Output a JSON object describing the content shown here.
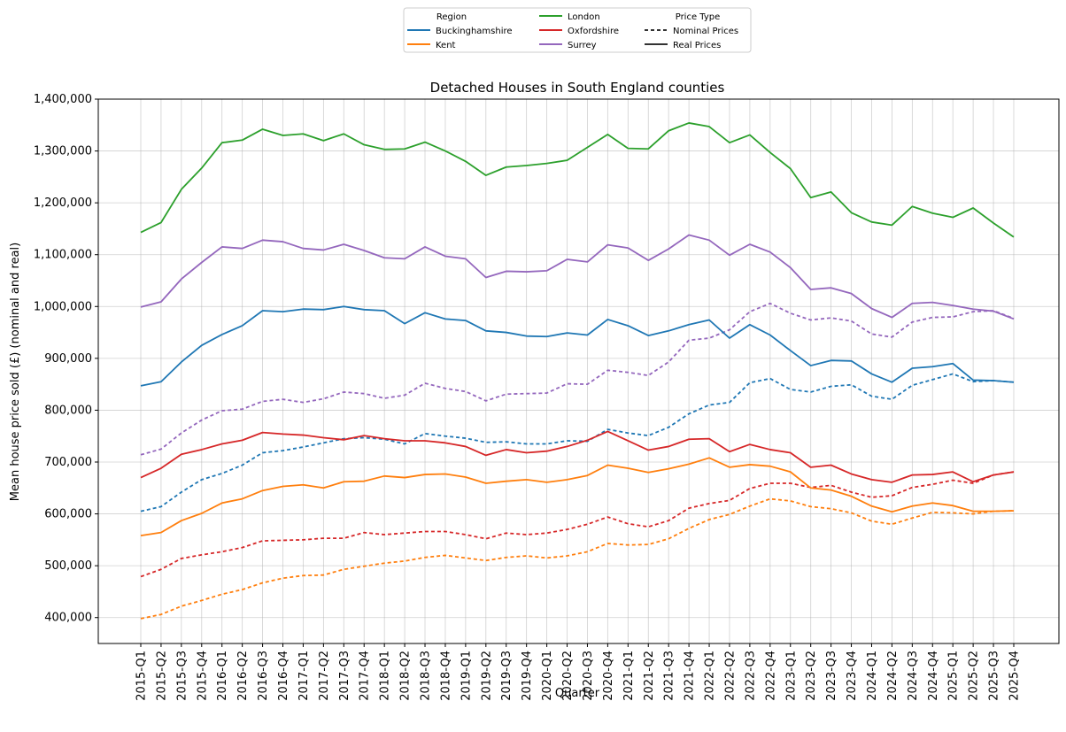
{
  "chart_data": {
    "type": "line",
    "title": "Detached Houses in South England counties",
    "xlabel": "Quarter",
    "ylabel": "Mean house price sold (£) (nominal and real)",
    "ylim": [
      350000,
      1400000
    ],
    "yticks": [
      400000,
      500000,
      600000,
      700000,
      800000,
      900000,
      1000000,
      1100000,
      1200000,
      1300000,
      1400000
    ],
    "ytick_labels": [
      "400,000",
      "500,000",
      "600,000",
      "700,000",
      "800,000",
      "900,000",
      "1,000,000",
      "1,100,000",
      "1,200,000",
      "1,300,000",
      "1,400,000"
    ],
    "grid": true,
    "legend": {
      "position": "top-center",
      "region_header": "Region",
      "price_type_header": "Price Type",
      "regions": [
        {
          "name": "Buckinghamshire",
          "color": "#1f77b4"
        },
        {
          "name": "Kent",
          "color": "#ff7f0e"
        },
        {
          "name": "London",
          "color": "#2ca02c"
        },
        {
          "name": "Oxfordshire",
          "color": "#d62728"
        },
        {
          "name": "Surrey",
          "color": "#9467bd"
        }
      ],
      "price_types": [
        {
          "name": "Nominal Prices",
          "style": "dashed"
        },
        {
          "name": "Real Prices",
          "style": "solid"
        }
      ]
    },
    "categories": [
      "2015-Q1",
      "2015-Q2",
      "2015-Q3",
      "2015-Q4",
      "2016-Q1",
      "2016-Q2",
      "2016-Q3",
      "2016-Q4",
      "2017-Q1",
      "2017-Q2",
      "2017-Q3",
      "2017-Q4",
      "2018-Q1",
      "2018-Q2",
      "2018-Q3",
      "2018-Q4",
      "2019-Q1",
      "2019-Q2",
      "2019-Q3",
      "2019-Q4",
      "2020-Q1",
      "2020-Q2",
      "2020-Q3",
      "2020-Q4",
      "2021-Q1",
      "2021-Q2",
      "2021-Q3",
      "2021-Q4",
      "2022-Q1",
      "2022-Q2",
      "2022-Q3",
      "2022-Q4",
      "2023-Q1",
      "2023-Q2",
      "2023-Q3",
      "2023-Q4",
      "2024-Q1",
      "2024-Q2",
      "2024-Q3",
      "2024-Q4",
      "2025-Q1",
      "2025-Q2",
      "2025-Q3",
      "2025-Q4"
    ],
    "series": [
      {
        "name": "London",
        "type": "Real Prices",
        "color": "#2ca02c",
        "style": "solid",
        "values": [
          1143000,
          1162000,
          1226000,
          1267000,
          1316000,
          1321000,
          1342000,
          1330000,
          1333000,
          1320000,
          1333000,
          1312000,
          1303000,
          1304000,
          1317000,
          1300000,
          1280000,
          1253000,
          1269000,
          1272000,
          1276000,
          1282000,
          1307000,
          1332000,
          1305000,
          1304000,
          1339000,
          1354000,
          1347000,
          1316000,
          1331000,
          1297000,
          1266000,
          1210000,
          1221000,
          1181000,
          1163000,
          1157000,
          1193000,
          1180000,
          1172000,
          1190000,
          1161000,
          1134000
        ]
      },
      {
        "name": "London",
        "type": "Nominal Prices",
        "color": "#2ca02c",
        "style": "dashed",
        "values": [
          null,
          null,
          null,
          null,
          null,
          null,
          null,
          null,
          null,
          null,
          null,
          null,
          null,
          null,
          null,
          null,
          null,
          null,
          null,
          null,
          null,
          null,
          null,
          null,
          null,
          null,
          null,
          null,
          null,
          null,
          null,
          null,
          null,
          null,
          null,
          null,
          null,
          null,
          null,
          null,
          null,
          null,
          null,
          null
        ]
      },
      {
        "name": "Surrey",
        "type": "Real Prices",
        "color": "#9467bd",
        "style": "solid",
        "values": [
          999000,
          1009000,
          1053000,
          1085000,
          1115000,
          1112000,
          1128000,
          1125000,
          1112000,
          1109000,
          1120000,
          1108000,
          1094000,
          1092000,
          1115000,
          1097000,
          1092000,
          1056000,
          1068000,
          1067000,
          1069000,
          1091000,
          1086000,
          1119000,
          1113000,
          1089000,
          1111000,
          1138000,
          1128000,
          1099000,
          1120000,
          1105000,
          1075000,
          1033000,
          1036000,
          1025000,
          996000,
          979000,
          1006000,
          1008000,
          1002000,
          995000,
          991000,
          976000
        ]
      },
      {
        "name": "Surrey",
        "type": "Nominal Prices",
        "color": "#9467bd",
        "style": "dashed",
        "values": [
          714000,
          725000,
          756000,
          781000,
          799000,
          802000,
          817000,
          821000,
          815000,
          822000,
          835000,
          832000,
          823000,
          829000,
          852000,
          842000,
          836000,
          818000,
          831000,
          832000,
          833000,
          851000,
          850000,
          877000,
          873000,
          867000,
          893000,
          935000,
          939000,
          955000,
          990000,
          1006000,
          987000,
          974000,
          978000,
          972000,
          947000,
          941000,
          970000,
          979000,
          980000,
          990000,
          992000,
          977000
        ]
      },
      {
        "name": "Buckinghamshire",
        "type": "Real Prices",
        "color": "#1f77b4",
        "style": "solid",
        "values": [
          847000,
          855000,
          893000,
          925000,
          946000,
          963000,
          992000,
          990000,
          995000,
          994000,
          1000000,
          994000,
          992000,
          967000,
          988000,
          976000,
          973000,
          953000,
          950000,
          943000,
          942000,
          949000,
          945000,
          975000,
          963000,
          944000,
          953000,
          965000,
          974000,
          939000,
          965000,
          945000,
          915000,
          886000,
          896000,
          895000,
          870000,
          854000,
          881000,
          884000,
          890000,
          858000,
          857000,
          854000
        ]
      },
      {
        "name": "Buckinghamshire",
        "type": "Nominal Prices",
        "color": "#1f77b4",
        "style": "dashed",
        "values": [
          605000,
          614000,
          642000,
          666000,
          678000,
          694000,
          718000,
          722000,
          729000,
          737000,
          745000,
          747000,
          744000,
          735000,
          755000,
          750000,
          746000,
          738000,
          739000,
          735000,
          735000,
          741000,
          740000,
          763000,
          756000,
          751000,
          767000,
          793000,
          810000,
          815000,
          853000,
          861000,
          840000,
          835000,
          846000,
          849000,
          827000,
          821000,
          848000,
          859000,
          870000,
          855000,
          857000,
          854000
        ]
      },
      {
        "name": "Oxfordshire",
        "type": "Real Prices",
        "color": "#d62728",
        "style": "solid",
        "values": [
          670000,
          688000,
          715000,
          724000,
          735000,
          742000,
          757000,
          754000,
          752000,
          747000,
          743000,
          751000,
          745000,
          741000,
          741000,
          737000,
          730000,
          713000,
          724000,
          718000,
          721000,
          730000,
          742000,
          759000,
          741000,
          723000,
          730000,
          744000,
          745000,
          720000,
          734000,
          724000,
          718000,
          690000,
          694000,
          677000,
          666000,
          661000,
          675000,
          676000,
          681000,
          662000,
          675000,
          681000
        ]
      },
      {
        "name": "Oxfordshire",
        "type": "Nominal Prices",
        "color": "#d62728",
        "style": "dashed",
        "values": [
          479000,
          493000,
          514000,
          521000,
          527000,
          535000,
          548000,
          549000,
          550000,
          553000,
          553000,
          564000,
          560000,
          563000,
          566000,
          566000,
          560000,
          552000,
          563000,
          560000,
          563000,
          570000,
          580000,
          594000,
          581000,
          575000,
          587000,
          611000,
          620000,
          626000,
          649000,
          659000,
          659000,
          651000,
          655000,
          642000,
          632000,
          635000,
          651000,
          657000,
          665000,
          659000,
          675000,
          681000
        ]
      },
      {
        "name": "Kent",
        "type": "Real Prices",
        "color": "#ff7f0e",
        "style": "solid",
        "values": [
          558000,
          564000,
          587000,
          601000,
          621000,
          629000,
          645000,
          653000,
          656000,
          650000,
          662000,
          663000,
          673000,
          670000,
          676000,
          677000,
          671000,
          659000,
          663000,
          666000,
          661000,
          666000,
          674000,
          694000,
          688000,
          680000,
          687000,
          696000,
          708000,
          690000,
          695000,
          692000,
          681000,
          650000,
          646000,
          634000,
          615000,
          604000,
          615000,
          621000,
          616000,
          605000,
          605000,
          606000
        ]
      },
      {
        "name": "Kent",
        "type": "Nominal Prices",
        "color": "#ff7f0e",
        "style": "dashed",
        "values": [
          398000,
          406000,
          422000,
          433000,
          445000,
          454000,
          467000,
          476000,
          481000,
          482000,
          493000,
          499000,
          505000,
          509000,
          516000,
          520000,
          515000,
          510000,
          516000,
          519000,
          515000,
          519000,
          527000,
          543000,
          540000,
          541000,
          552000,
          572000,
          589000,
          599000,
          615000,
          629000,
          625000,
          614000,
          610000,
          602000,
          586000,
          580000,
          592000,
          603000,
          602000,
          600000,
          605000,
          606000
        ]
      }
    ]
  }
}
